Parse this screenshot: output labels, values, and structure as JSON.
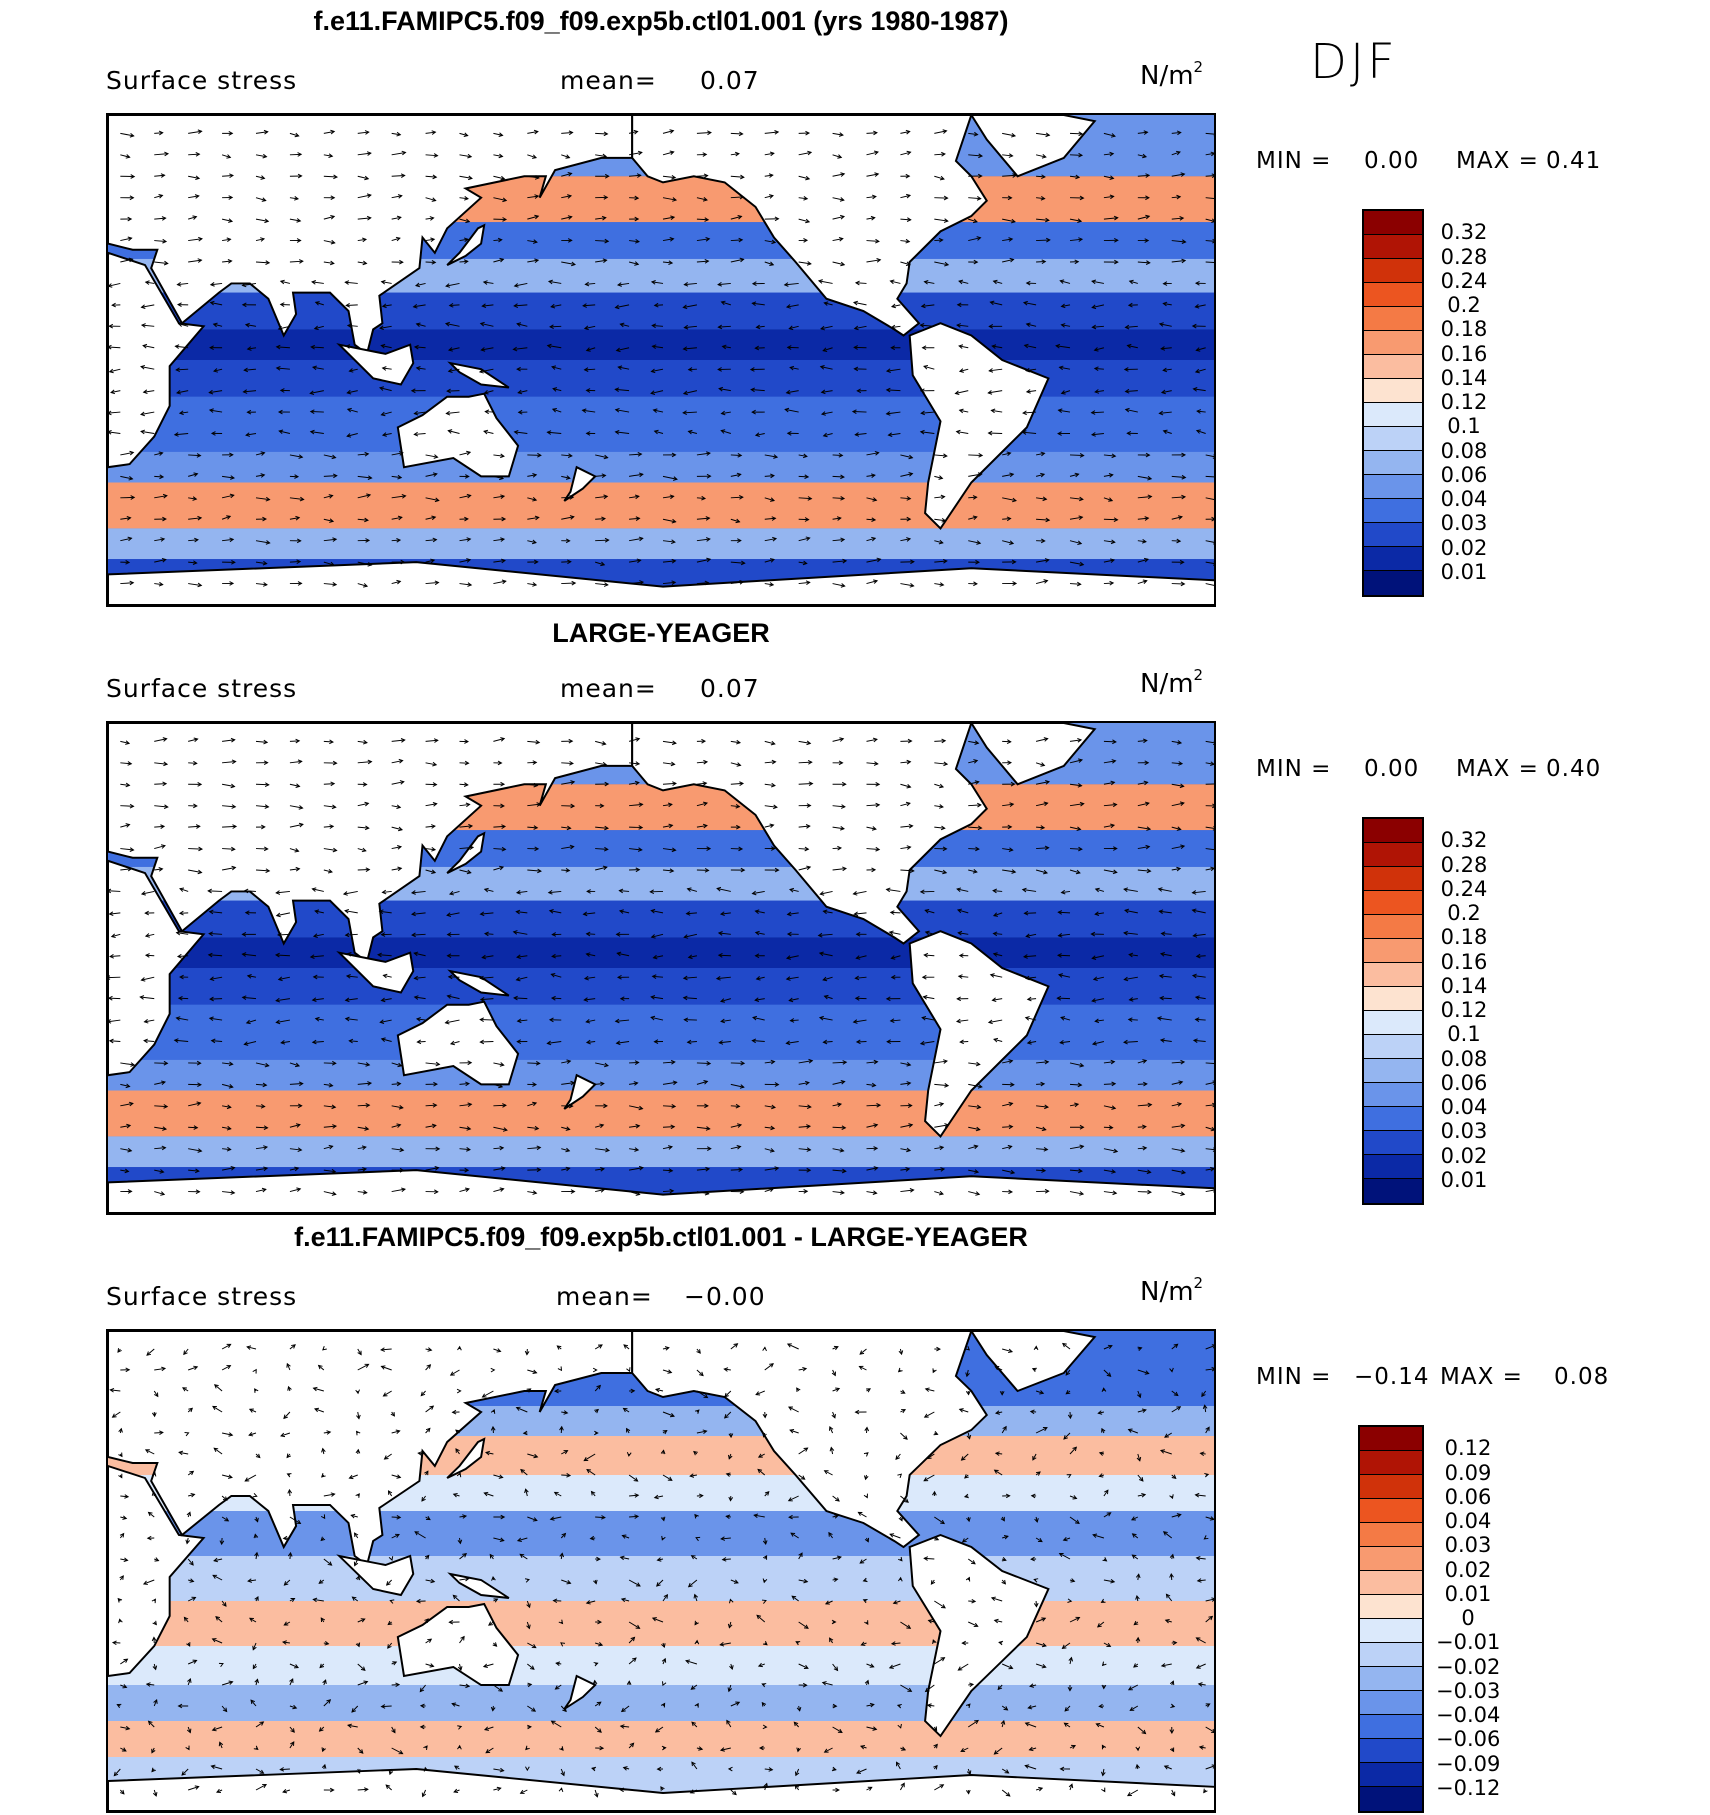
{
  "season": "DJF",
  "colors": {
    "land": "#ffffff",
    "coast": "#000000",
    "vector": "#000000"
  },
  "panels": [
    {
      "title": "f.e11.FAMIPC5.f09_f09.exp5b.ctl01.001 (yrs 1980-1987)",
      "variable": "Surface stress",
      "mean_label": "mean=",
      "mean_value": "0.07",
      "units_base": "N/m",
      "units_exp": "2",
      "min_label": "MIN =",
      "min_value": "0.00",
      "max_label": "MAX =",
      "max_value": "0.41",
      "levels": [
        "0.32",
        "0.28",
        "0.24",
        "0.2",
        "0.18",
        "0.16",
        "0.14",
        "0.12",
        "0.1",
        "0.08",
        "0.06",
        "0.04",
        "0.03",
        "0.02",
        "0.01"
      ],
      "colorbar": [
        "#8b0000",
        "#b01405",
        "#d0320a",
        "#ec5520",
        "#f47a45",
        "#f89a70",
        "#fbbda0",
        "#fde3d0",
        "#dbe9fb",
        "#bcd2f7",
        "#94b5f0",
        "#6a94ea",
        "#3f6fe0",
        "#2149c9",
        "#0b29a6",
        "#00127a"
      ]
    },
    {
      "title": "LARGE-YEAGER",
      "variable": "Surface stress",
      "mean_label": "mean=",
      "mean_value": "0.07",
      "units_base": "N/m",
      "units_exp": "2",
      "min_label": "MIN =",
      "min_value": "0.00",
      "max_label": "MAX =",
      "max_value": "0.40",
      "levels": [
        "0.32",
        "0.28",
        "0.24",
        "0.2",
        "0.18",
        "0.16",
        "0.14",
        "0.12",
        "0.1",
        "0.08",
        "0.06",
        "0.04",
        "0.03",
        "0.02",
        "0.01"
      ],
      "colorbar": [
        "#8b0000",
        "#b01405",
        "#d0320a",
        "#ec5520",
        "#f47a45",
        "#f89a70",
        "#fbbda0",
        "#fde3d0",
        "#dbe9fb",
        "#bcd2f7",
        "#94b5f0",
        "#6a94ea",
        "#3f6fe0",
        "#2149c9",
        "#0b29a6",
        "#00127a"
      ]
    },
    {
      "title": "f.e11.FAMIPC5.f09_f09.exp5b.ctl01.001 - LARGE-YEAGER",
      "variable": "Surface stress",
      "mean_label": "mean=",
      "mean_value": "−0.00",
      "units_base": "N/m",
      "units_exp": "2",
      "min_label": "MIN =",
      "min_value": "−0.14",
      "max_label": "MAX =",
      "max_value": "0.08",
      "levels": [
        "0.12",
        "0.09",
        "0.06",
        "0.04",
        "0.03",
        "0.02",
        "0.01",
        "0",
        "−0.01",
        "−0.02",
        "−0.03",
        "−0.04",
        "−0.06",
        "−0.09",
        "−0.12"
      ],
      "colorbar": [
        "#8b0000",
        "#b01405",
        "#d0320a",
        "#ec5520",
        "#f47a45",
        "#f89a70",
        "#fbbda0",
        "#fde3d0",
        "#dbe9fb",
        "#bcd2f7",
        "#94b5f0",
        "#6a94ea",
        "#3f6fe0",
        "#2149c9",
        "#0b29a6",
        "#00127a"
      ]
    }
  ]
}
